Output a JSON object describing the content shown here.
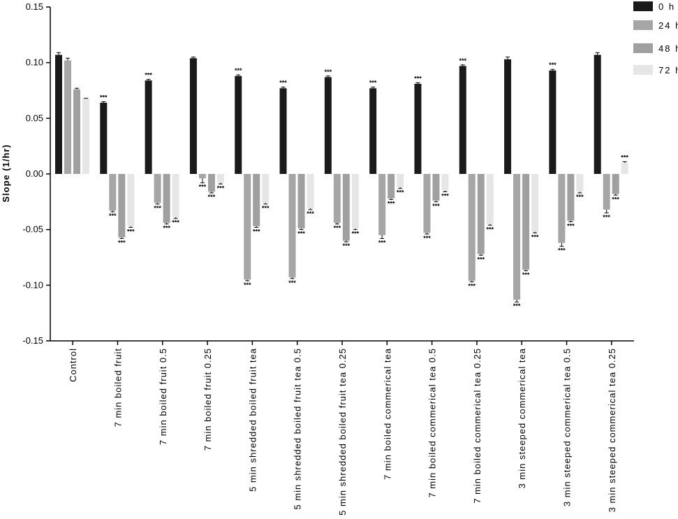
{
  "chart_data": {
    "type": "bar",
    "title": "",
    "xlabel": "",
    "ylabel": "Slope (1/hr)",
    "ylim": [
      -0.15,
      0.15
    ],
    "yticks": [
      "0.15",
      "0.10",
      "0.05",
      "0.00",
      "-0.05",
      "-0.10",
      "-0.15"
    ],
    "legend_position": "top-right",
    "significance_marker": "***",
    "categories": [
      "Control",
      "7 min boiled fruit",
      "7 min boiled fruit 0.5",
      "7 min boiled fruit 0.25",
      "5 min shredded boiled fruit tea",
      "5 min shredded boiled fruit tea 0.5",
      "5 min shredded boiled fruit tea 0.25",
      "7 min boiled commerical tea",
      "7 min boiled commerical tea 0.5",
      "7 min boiled commerical tea 0.25",
      "3 min steeped commerical tea",
      "3 min steeped commerical tea 0.5",
      "3 min steeped commerical tea 0.25"
    ],
    "series": [
      {
        "name": "0 h",
        "color": "#1a1a1a",
        "values": [
          0.107,
          0.064,
          0.084,
          0.104,
          0.088,
          0.077,
          0.087,
          0.077,
          0.081,
          0.097,
          0.103,
          0.093,
          0.107
        ],
        "errors": [
          0.002,
          0.001,
          0.001,
          0.001,
          0.001,
          0.001,
          0.001,
          0.001,
          0.001,
          0.001,
          0.002,
          0.001,
          0.002
        ],
        "significant": [
          false,
          true,
          true,
          false,
          true,
          true,
          true,
          true,
          true,
          true,
          false,
          true,
          false
        ]
      },
      {
        "name": "24 h",
        "color": "#a6a6a6",
        "values": [
          0.102,
          -0.033,
          -0.026,
          -0.004,
          -0.095,
          -0.093,
          -0.044,
          -0.055,
          -0.053,
          -0.096,
          -0.113,
          -0.062,
          -0.032
        ],
        "errors": [
          0.002,
          0.001,
          0.001,
          0.004,
          0.001,
          0.001,
          0.001,
          0.003,
          0.001,
          0.001,
          0.002,
          0.003,
          0.003
        ],
        "significant": [
          false,
          true,
          true,
          true,
          true,
          true,
          true,
          true,
          true,
          true,
          true,
          true,
          true
        ]
      },
      {
        "name": "48 h",
        "color": "#a0a0a0",
        "values": [
          0.076,
          -0.057,
          -0.044,
          -0.016,
          -0.047,
          -0.049,
          -0.06,
          -0.022,
          -0.024,
          -0.072,
          -0.086,
          -0.042,
          -0.018
        ],
        "errors": [
          0.001,
          0.001,
          0.001,
          0.001,
          0.001,
          0.001,
          0.001,
          0.001,
          0.001,
          0.001,
          0.001,
          0.001,
          0.001
        ],
        "significant": [
          false,
          true,
          true,
          true,
          true,
          true,
          true,
          true,
          true,
          true,
          true,
          true,
          true
        ]
      },
      {
        "name": "72 h",
        "color": "#e6e6e6",
        "values": [
          0.068,
          -0.047,
          -0.039,
          -0.008,
          -0.026,
          -0.031,
          -0.049,
          -0.012,
          -0.015,
          -0.045,
          -0.052,
          -0.016,
          0.01
        ],
        "errors": [
          0.0,
          0.001,
          0.001,
          0.001,
          0.001,
          0.001,
          0.001,
          0.001,
          0.001,
          0.001,
          0.001,
          0.001,
          0.001
        ],
        "significant": [
          false,
          true,
          true,
          true,
          true,
          true,
          true,
          true,
          true,
          true,
          true,
          true,
          true
        ]
      }
    ]
  }
}
